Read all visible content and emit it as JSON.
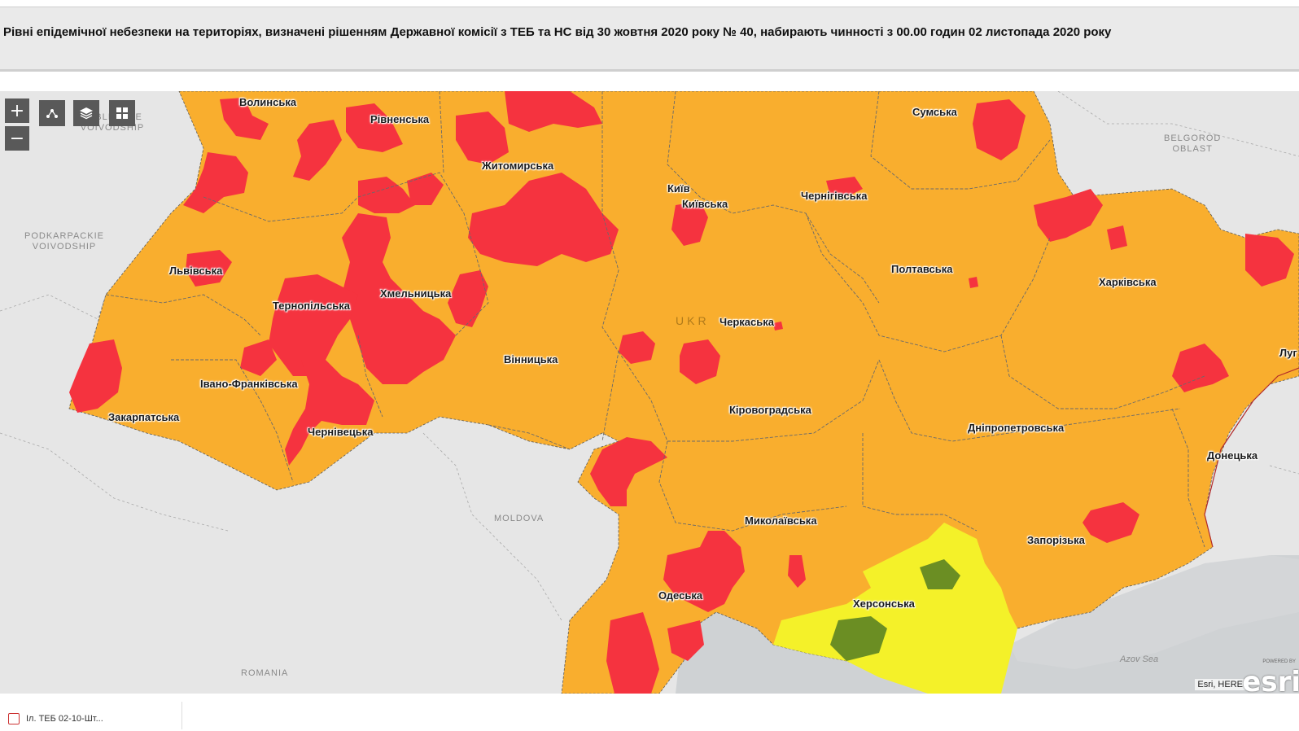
{
  "header": {
    "title": "Рівні епідемічної небезпеки на територіях, визначені рішенням Державної комісії з ТЕБ та НС від 30 жовтня 2020 року № 40, набирають чинності з 00.00 годин 02 листопада 2020 року"
  },
  "controls": {
    "zoom_in": "+",
    "zoom_out": "−"
  },
  "colors": {
    "orange": "#f9ae2e",
    "red": "#f5333f",
    "yellow": "#f4f129",
    "green": "#6b8e23",
    "sea": "#cfd2d4",
    "land": "#e6e6e6"
  },
  "regions": [
    {
      "key": "volyn",
      "name": "Волинська"
    },
    {
      "key": "rivne",
      "name": "Рівненська"
    },
    {
      "key": "zhytomyr",
      "name": "Житомирська"
    },
    {
      "key": "kyiv_city",
      "name": "Київ"
    },
    {
      "key": "kyiv",
      "name": "Київська"
    },
    {
      "key": "chernihiv",
      "name": "Чернігівська"
    },
    {
      "key": "sumy",
      "name": "Сумська"
    },
    {
      "key": "lviv",
      "name": "Львівська"
    },
    {
      "key": "ternopil",
      "name": "Тернопільська"
    },
    {
      "key": "khmelnytskyi",
      "name": "Хмельницька"
    },
    {
      "key": "poltava",
      "name": "Полтавська"
    },
    {
      "key": "kharkiv",
      "name": "Харківська"
    },
    {
      "key": "cherkasy",
      "name": "Черкаська"
    },
    {
      "key": "vinnytsia",
      "name": "Вінницька"
    },
    {
      "key": "ivano_frankivsk",
      "name": "Івано-Франківська"
    },
    {
      "key": "kirovohrad",
      "name": "Кіровоградська"
    },
    {
      "key": "zakarpattia",
      "name": "Закарпатська"
    },
    {
      "key": "chernivtsi",
      "name": "Чернівецька"
    },
    {
      "key": "dnipro",
      "name": "Дніпропетровська"
    },
    {
      "key": "luhansk",
      "name": "Луг"
    },
    {
      "key": "donetsk",
      "name": "Донецька"
    },
    {
      "key": "mykolaiv",
      "name": "Миколаївська"
    },
    {
      "key": "zaporizhzhia",
      "name": "Запорізька"
    },
    {
      "key": "odesa",
      "name": "Одеська"
    },
    {
      "key": "kherson",
      "name": "Херсонська"
    }
  ],
  "basemap_labels": {
    "lublin": "LUBLINSKIE VOIVODSHIP",
    "podkarpackie_1": "PODKARPACKIE",
    "podkarpackie_2": "VOIVODSHIP",
    "belgorod_1": "BELGOROD",
    "belgorod_2": "OBLAST",
    "moldova": "MOLDOVA",
    "romania": "ROMANIA",
    "azov": "Azov Sea",
    "ukraine": "UKR"
  },
  "attribution": "Esri, HERE",
  "logo": {
    "powered": "POWERED BY",
    "text": "esri"
  },
  "footer": {
    "layer_label": "Іл. ТЕБ 02-10-Шт..."
  }
}
